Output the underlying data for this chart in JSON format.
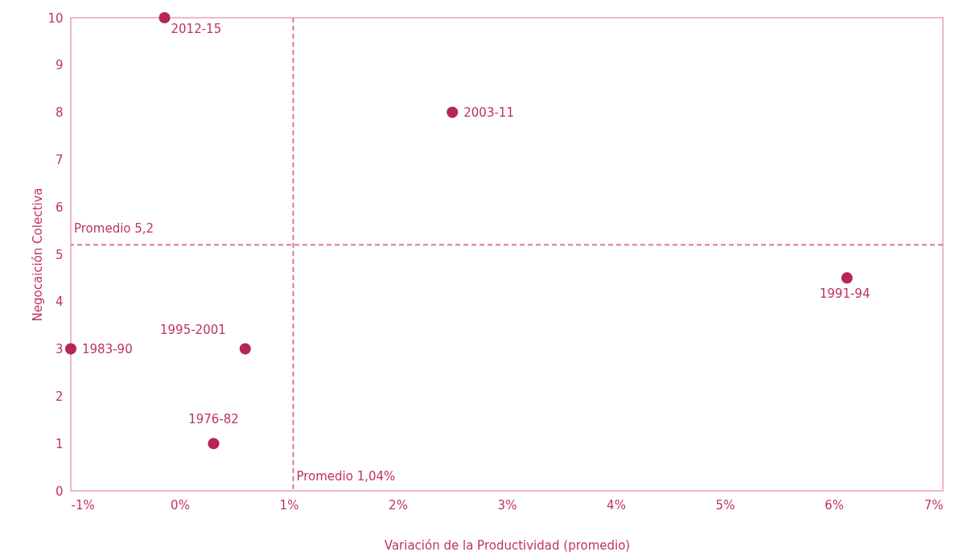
{
  "chart_data": {
    "type": "scatter",
    "xlabel": "Variación de la Productividad (promedio)",
    "ylabel": "Negocaición Colectiva",
    "x": [
      -0.14,
      2.5,
      6.12,
      -1,
      0.6,
      0.31
    ],
    "series": [
      {
        "color": "#b5245a",
        "values": [
          10,
          8,
          4.5,
          3,
          3,
          1
        ]
      }
    ],
    "marker": "circle",
    "xlim": [
      -1,
      7
    ],
    "xticks": [
      {
        "value": -1,
        "label": "-1%"
      },
      {
        "value": 0,
        "label": "0%"
      },
      {
        "value": 1,
        "label": "1%"
      },
      {
        "value": 2,
        "label": "2%"
      },
      {
        "value": 3,
        "label": "3%"
      },
      {
        "value": 4,
        "label": "4%"
      },
      {
        "value": 5,
        "label": "5%"
      },
      {
        "value": 6,
        "label": "6%"
      },
      {
        "value": 7,
        "label": "7%"
      }
    ],
    "ylim": [
      0,
      10
    ],
    "yticks": [
      0,
      1,
      2,
      3,
      4,
      5,
      6,
      7,
      8,
      9,
      10
    ],
    "grid": false,
    "ref_lines": [
      {
        "axis": "y",
        "value": 5.2,
        "label": "Promedio 5,2",
        "color": "#d67a98",
        "line_style": "dashed"
      },
      {
        "axis": "x",
        "value": 1.04,
        "label": "Promedio 1,04%",
        "color": "#d67a98",
        "line_style": "dashed"
      }
    ],
    "annotations": [
      {
        "text": "2012-15",
        "x": -0.14,
        "y": 10
      },
      {
        "text": "2003-11",
        "x": 2.5,
        "y": 8
      },
      {
        "text": "1991-94",
        "x": 6.12,
        "y": 4.5
      },
      {
        "text": "1983-90",
        "x": -1,
        "y": 3
      },
      {
        "text": "1995-2001",
        "x": 0.6,
        "y": 3
      },
      {
        "text": "1976-82",
        "x": 0.31,
        "y": 1
      }
    ]
  }
}
